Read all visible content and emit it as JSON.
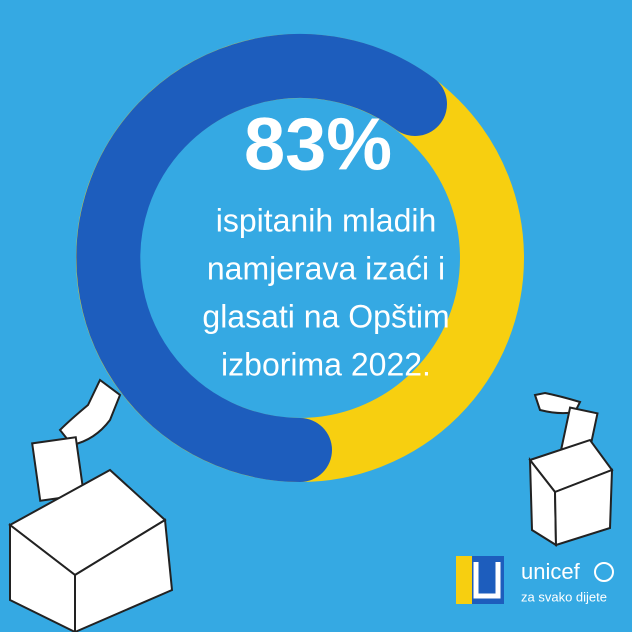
{
  "headline": "83%",
  "lines": [
    "ispitanih mladih",
    "namjerava izaći i",
    "glasati na Opštim",
    "izborima 2022."
  ],
  "logo": {
    "brand": "unicef",
    "tagline": "za svako dijete"
  }
}
